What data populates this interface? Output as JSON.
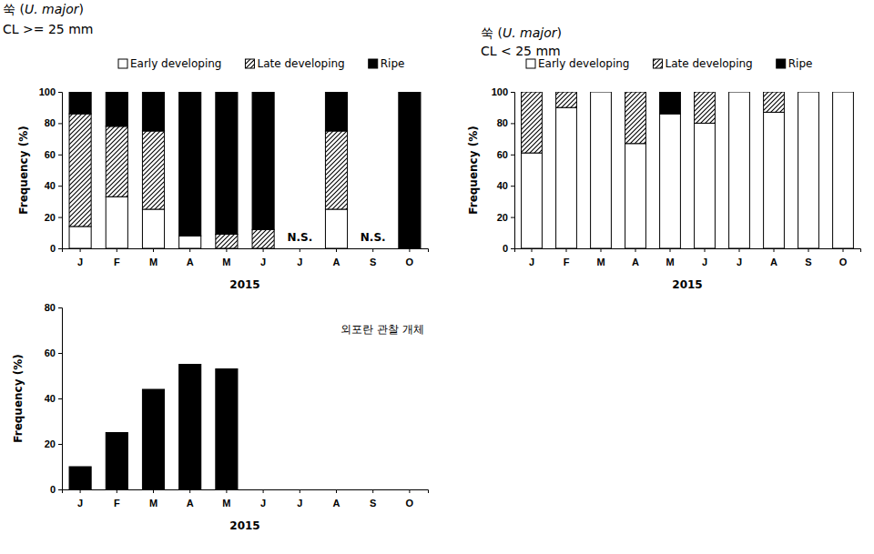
{
  "chart_data": [
    {
      "type": "bar",
      "stacked": true,
      "title": "쑥 (U. major)",
      "subtitle": "CL >= 25 mm",
      "x_label": "2015",
      "y_label": "Frequency (%)",
      "categories": [
        "J",
        "F",
        "M",
        "A",
        "M",
        "J",
        "J",
        "A",
        "S",
        "O"
      ],
      "series": [
        {
          "name": "Early developing",
          "color": "#ffffff",
          "values": [
            14,
            33,
            25,
            8,
            0,
            0,
            null,
            25,
            null,
            0
          ]
        },
        {
          "name": "Late developing",
          "color": "#000000",
          "marker": "hatch",
          "values": [
            72,
            45,
            50,
            0,
            9,
            12,
            null,
            50,
            null,
            0
          ]
        },
        {
          "name": "Ripe",
          "color": "#000000",
          "values": [
            14,
            22,
            25,
            92,
            91,
            88,
            null,
            25,
            null,
            100
          ]
        }
      ],
      "annotations": [
        {
          "text": "N.S.",
          "x": 6
        },
        {
          "text": "N.S.",
          "x": 8
        }
      ],
      "ylim": [
        0,
        100
      ],
      "yticks": [
        0,
        20,
        40,
        60,
        80,
        100
      ],
      "legend": "top"
    },
    {
      "type": "bar",
      "stacked": true,
      "title": "쑥 (U. major)",
      "subtitle": "CL < 25 mm",
      "x_label": "2015",
      "y_label": "Frequency (%)",
      "categories": [
        "J",
        "F",
        "M",
        "A",
        "M",
        "J",
        "J",
        "A",
        "S",
        "O"
      ],
      "series": [
        {
          "name": "Early developing",
          "color": "#ffffff",
          "values": [
            61,
            90,
            100,
            67,
            86,
            80,
            100,
            87,
            100,
            100
          ]
        },
        {
          "name": "Late developing",
          "color": "#000000",
          "marker": "hatch",
          "values": [
            39,
            10,
            0,
            33,
            0,
            20,
            0,
            13,
            0,
            0
          ]
        },
        {
          "name": "Ripe",
          "color": "#000000",
          "values": [
            0,
            0,
            0,
            0,
            14,
            0,
            0,
            0,
            0,
            0
          ]
        }
      ],
      "ylim": [
        0,
        100
      ],
      "yticks": [
        0,
        20,
        40,
        60,
        80,
        100
      ],
      "legend": "top"
    },
    {
      "type": "bar",
      "x_label": "2015",
      "y_label": "Frequency (%)",
      "categories": [
        "J",
        "F",
        "M",
        "A",
        "M",
        "J",
        "J",
        "A",
        "S",
        "O"
      ],
      "values": [
        10,
        25,
        44,
        55,
        53,
        0,
        0,
        0,
        0,
        0
      ],
      "color": "#000000",
      "annotations": [
        {
          "text": "외포란 관찰 개체"
        }
      ],
      "ylim": [
        0,
        80
      ],
      "yticks": [
        0,
        20,
        40,
        60,
        80
      ]
    }
  ]
}
